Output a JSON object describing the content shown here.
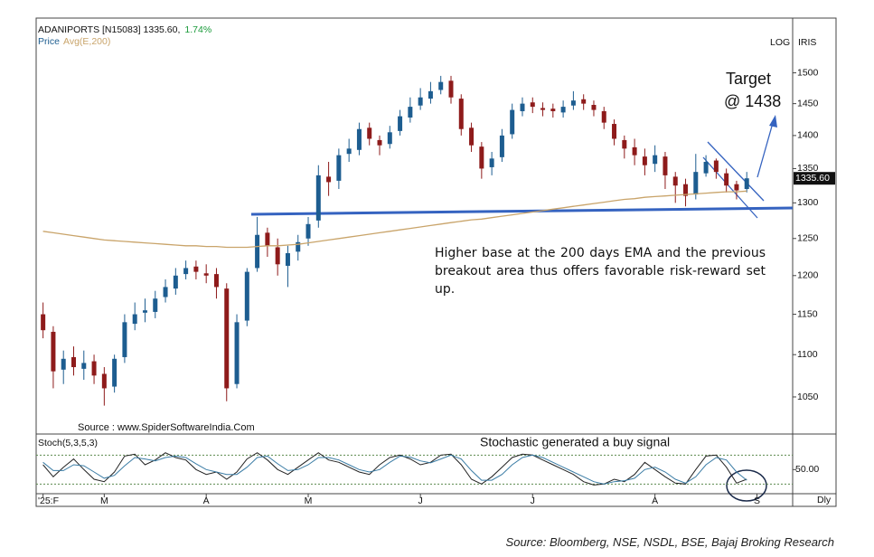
{
  "chart_data": [
    {
      "type": "candlestick",
      "title": "ADANIPORTS [N15083] 1335.60,",
      "change": {
        "value": 1.74,
        "label": "1.74%"
      },
      "last_close": {
        "value": 1335.6,
        "label": "1335.60"
      },
      "log_scale": true,
      "scale_labels": [
        "LOG",
        "IRIS"
      ],
      "source": "Source : www.SpiderSoftwareIndia.Com",
      "target_label": "Target",
      "target_value_label": "@ 1438",
      "note": "Higher base at the 200 days EMA and the previous breakout area thus offers favorable risk-reward set up.",
      "xlim": [
        -0.5,
        73.5
      ],
      "ylim": [
        1010,
        1590
      ],
      "yticks": [
        1050,
        1100,
        1150,
        1200,
        1250,
        1300,
        1350,
        1400,
        1450,
        1500
      ],
      "series": [
        {
          "name": "Price",
          "color": "#1d5d90",
          "down_color": "#8e1b1b",
          "open": [
            1150,
            1128,
            1082,
            1097,
            1083,
            1092,
            1077,
            1062,
            1097,
            1138,
            1152,
            1153,
            1172,
            1183,
            1202,
            1212,
            1203,
            1202,
            1183,
            1065,
            1142,
            1210,
            1258,
            1238,
            1213,
            1232,
            1250,
            1275,
            1338,
            1332,
            1372,
            1378,
            1412,
            1393,
            1387,
            1407,
            1428,
            1447,
            1458,
            1472,
            1487,
            1458,
            1412,
            1383,
            1352,
            1367,
            1402,
            1438,
            1452,
            1443,
            1442,
            1436,
            1447,
            1457,
            1448,
            1438,
            1418,
            1393,
            1382,
            1368,
            1357,
            1368,
            1338,
            1327,
            1312,
            1343,
            1362,
            1343,
            1327,
            1320
          ],
          "high": [
            1165,
            1135,
            1105,
            1110,
            1105,
            1100,
            1085,
            1100,
            1150,
            1165,
            1170,
            1180,
            1195,
            1210,
            1220,
            1220,
            1215,
            1210,
            1190,
            1150,
            1210,
            1280,
            1265,
            1250,
            1240,
            1255,
            1280,
            1355,
            1360,
            1380,
            1395,
            1420,
            1420,
            1400,
            1415,
            1440,
            1460,
            1475,
            1485,
            1495,
            1495,
            1465,
            1420,
            1390,
            1375,
            1410,
            1450,
            1460,
            1460,
            1452,
            1450,
            1455,
            1470,
            1465,
            1455,
            1445,
            1425,
            1400,
            1395,
            1380,
            1385,
            1375,
            1345,
            1335,
            1372,
            1370,
            1365,
            1350,
            1332,
            1345
          ],
          "low": [
            1120,
            1060,
            1065,
            1075,
            1070,
            1065,
            1040,
            1055,
            1090,
            1130,
            1140,
            1145,
            1165,
            1175,
            1195,
            1195,
            1190,
            1170,
            1045,
            1060,
            1135,
            1205,
            1225,
            1200,
            1185,
            1220,
            1240,
            1265,
            1310,
            1320,
            1360,
            1370,
            1385,
            1370,
            1380,
            1400,
            1420,
            1440,
            1450,
            1465,
            1450,
            1400,
            1375,
            1335,
            1340,
            1360,
            1395,
            1430,
            1435,
            1430,
            1428,
            1428,
            1440,
            1440,
            1430,
            1410,
            1385,
            1365,
            1355,
            1340,
            1345,
            1320,
            1300,
            1295,
            1305,
            1338,
            1335,
            1315,
            1305,
            1315
          ],
          "close": [
            1130,
            1080,
            1095,
            1085,
            1090,
            1075,
            1060,
            1095,
            1140,
            1150,
            1155,
            1170,
            1185,
            1200,
            1210,
            1205,
            1200,
            1185,
            1060,
            1140,
            1205,
            1255,
            1240,
            1215,
            1230,
            1245,
            1270,
            1340,
            1330,
            1370,
            1380,
            1410,
            1395,
            1385,
            1405,
            1430,
            1445,
            1460,
            1470,
            1485,
            1460,
            1410,
            1385,
            1350,
            1365,
            1400,
            1440,
            1450,
            1445,
            1440,
            1438,
            1445,
            1455,
            1450,
            1440,
            1420,
            1395,
            1380,
            1370,
            1355,
            1370,
            1340,
            1325,
            1310,
            1345,
            1360,
            1345,
            1325,
            1318,
            1335.6
          ]
        },
        {
          "name": "Avg(E,200)",
          "color": "#c9a46a",
          "values": [
            1260,
            1258,
            1256,
            1254,
            1252,
            1250,
            1248,
            1247,
            1246,
            1245,
            1244,
            1243,
            1242,
            1241,
            1240,
            1240,
            1239,
            1239,
            1238,
            1238,
            1238,
            1239,
            1240,
            1240,
            1241,
            1242,
            1244,
            1246,
            1248,
            1250,
            1252,
            1254,
            1256,
            1258,
            1260,
            1262,
            1264,
            1266,
            1268,
            1270,
            1272,
            1274,
            1276,
            1277,
            1279,
            1281,
            1283,
            1285,
            1287,
            1289,
            1291,
            1293,
            1295,
            1297,
            1299,
            1301,
            1303,
            1305,
            1306,
            1308,
            1309,
            1310,
            1311,
            1312,
            1313,
            1314,
            1315,
            1316,
            1316,
            1317
          ]
        }
      ]
    },
    {
      "type": "line",
      "title": "Stoch(5,3,5,3)",
      "annotation": "Stochastic generated a buy signal",
      "xlim": [
        -0.5,
        73.5
      ],
      "ylim": [
        0,
        120
      ],
      "yticks": [
        {
          "value": 50,
          "label": "50.00"
        }
      ],
      "reference_lines": [
        20,
        80
      ],
      "xticks": [
        {
          "value": 0,
          "label": "'25:F"
        },
        {
          "value": 6,
          "label": "M"
        },
        {
          "value": 16,
          "label": "A"
        },
        {
          "value": 26,
          "label": "M"
        },
        {
          "value": 37,
          "label": "J"
        },
        {
          "value": 48,
          "label": "J"
        },
        {
          "value": 60,
          "label": "A"
        },
        {
          "value": 70,
          "label": "S"
        }
      ],
      "frequency": "Dly",
      "series": [
        {
          "color": "#222222",
          "values": [
            60,
            35,
            55,
            72,
            50,
            30,
            25,
            45,
            78,
            82,
            60,
            70,
            85,
            75,
            70,
            50,
            40,
            45,
            30,
            45,
            72,
            85,
            70,
            50,
            40,
            55,
            70,
            85,
            70,
            65,
            55,
            45,
            40,
            60,
            75,
            80,
            72,
            60,
            65,
            80,
            82,
            60,
            30,
            20,
            35,
            55,
            75,
            82,
            80,
            70,
            60,
            50,
            40,
            25,
            18,
            20,
            30,
            25,
            40,
            65,
            50,
            35,
            22,
            20,
            50,
            78,
            80,
            55,
            22,
            30
          ]
        },
        {
          "color": "#3a7ca5",
          "values": [
            65,
            48,
            48,
            60,
            58,
            45,
            32,
            38,
            58,
            75,
            72,
            68,
            75,
            78,
            75,
            62,
            50,
            45,
            40,
            40,
            55,
            75,
            78,
            62,
            48,
            50,
            60,
            75,
            75,
            70,
            60,
            50,
            45,
            50,
            65,
            78,
            76,
            68,
            64,
            72,
            80,
            72,
            48,
            28,
            28,
            40,
            60,
            75,
            80,
            75,
            65,
            55,
            45,
            35,
            25,
            20,
            25,
            27,
            32,
            50,
            55,
            45,
            30,
            22,
            35,
            60,
            75,
            70,
            45,
            28
          ]
        }
      ]
    }
  ],
  "footer": "Source: Bloomberg, NSE, NSDL, BSE, Bajaj Broking Research"
}
